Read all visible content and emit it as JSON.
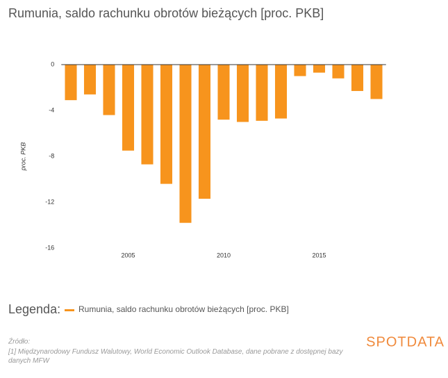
{
  "chart_data": {
    "type": "bar",
    "title": "Rumunia, saldo rachunku obrotów bieżących [proc. PKB]",
    "y_label": "proc. PKB",
    "x": [
      2002,
      2003,
      2004,
      2005,
      2006,
      2007,
      2008,
      2009,
      2010,
      2011,
      2012,
      2013,
      2014,
      2015,
      2016,
      2017,
      2018
    ],
    "series": [
      {
        "name": "Rumunia, saldo rachunku obrotów bieżących [proc. PKB]",
        "color": "#f7941d",
        "values": [
          -3.1,
          -2.6,
          -4.4,
          -7.5,
          -8.7,
          -10.4,
          -13.8,
          -11.7,
          -4.8,
          -5.0,
          -4.9,
          -4.7,
          -1.0,
          -0.7,
          -1.2,
          -2.3,
          -3.0
        ]
      }
    ],
    "xlim": [
      2001.5,
      2018.5
    ],
    "xticks": [
      2005,
      2010,
      2015
    ],
    "ylim": [
      -16,
      0
    ],
    "yticks": [
      0,
      -4,
      -8,
      -12,
      -16
    ],
    "grid": false
  },
  "legend_title": "Legenda:",
  "source": {
    "heading": "Źródło:",
    "text": "[1] Międzynarodowy Fundusz Walutowy, World Economic Outlook Database, dane pobrane z dostępnej bazy danych MFW"
  },
  "logo": "SPOTDATA"
}
